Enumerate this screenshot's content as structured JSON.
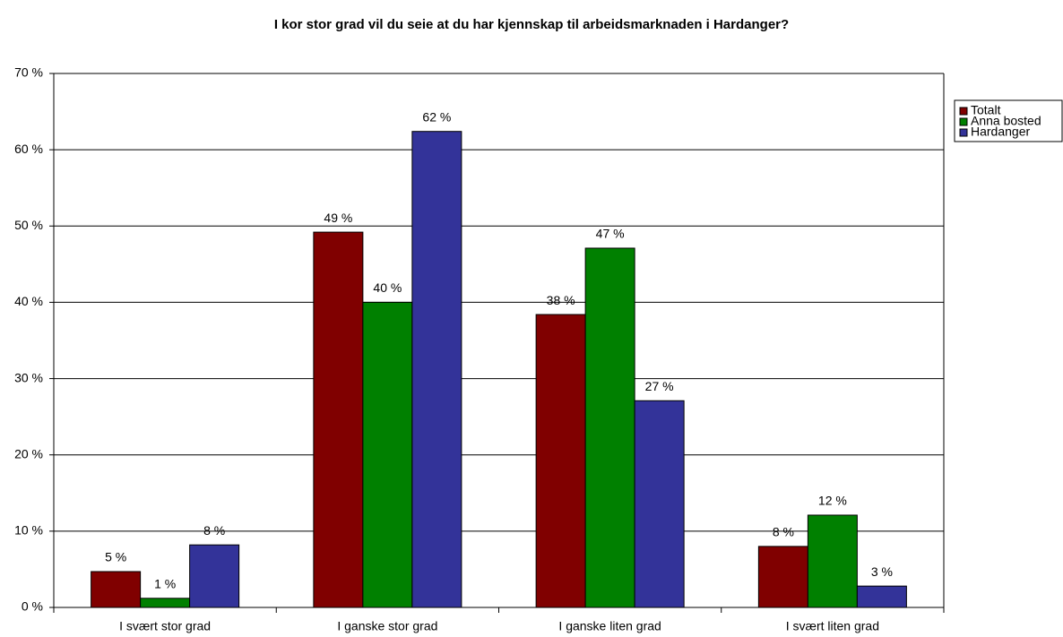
{
  "chart_data": {
    "type": "bar",
    "title": "I kor stor grad vil du seie at du har kjennskap til arbeidsmarknaden i Hardanger?",
    "categories": [
      "I svært stor grad",
      "I ganske stor grad",
      "I ganske liten grad",
      "I svært liten grad"
    ],
    "series": [
      {
        "name": "Totalt",
        "color": "#800000",
        "values": [
          4.7,
          49.2,
          38.4,
          8.0
        ],
        "value_labels": [
          "5 %",
          "49 %",
          "38 %",
          "8 %"
        ]
      },
      {
        "name": "Anna bosted",
        "color": "#008000",
        "values": [
          1.2,
          40.0,
          47.1,
          12.1
        ],
        "value_labels": [
          "1 %",
          "40 %",
          "47 %",
          "12 %"
        ]
      },
      {
        "name": "Hardanger",
        "color": "#333399",
        "values": [
          8.2,
          62.4,
          27.1,
          2.8
        ],
        "value_labels": [
          "8 %",
          "62 %",
          "27 %",
          "3 %"
        ]
      }
    ],
    "ylim": [
      0,
      70
    ],
    "yticks": [
      {
        "value": 0,
        "label": "0 %"
      },
      {
        "value": 10,
        "label": "10 %"
      },
      {
        "value": 20,
        "label": "20 %"
      },
      {
        "value": 30,
        "label": "30 %"
      },
      {
        "value": 40,
        "label": "40 %"
      },
      {
        "value": 50,
        "label": "50 %"
      },
      {
        "value": 60,
        "label": "60 %"
      },
      {
        "value": 70,
        "label": "70 %"
      }
    ],
    "grid": true,
    "legend": "right"
  }
}
